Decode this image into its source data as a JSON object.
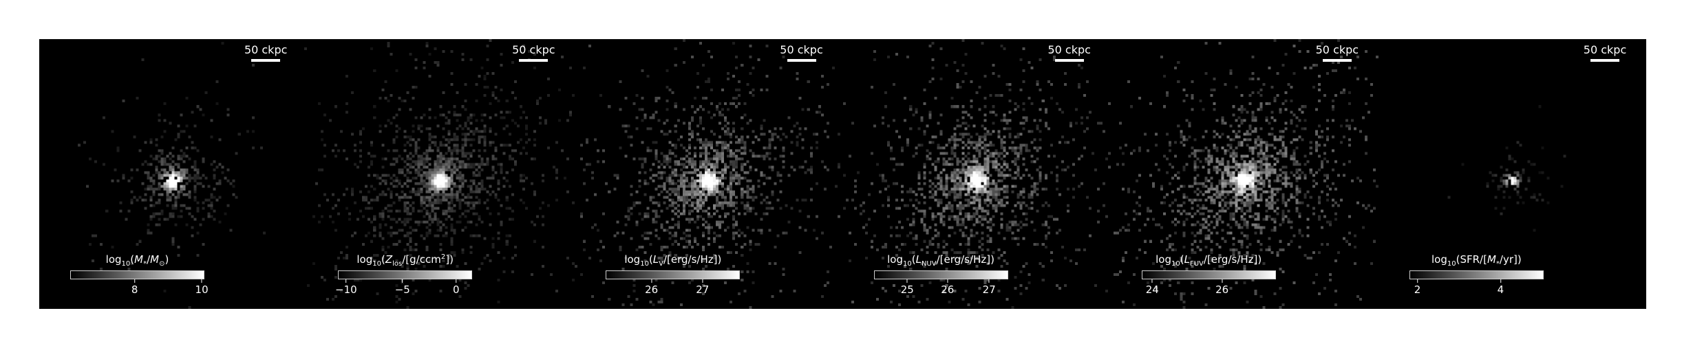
{
  "panels": [
    {
      "id": "stellar-mass",
      "scalebar": "50 ckpc",
      "label_html": "log<sub>10</sub>(<i>M</i><sub>*</sub>/<i>M</i><sub>⊙</sub>)",
      "ticks": [
        {
          "v": "8",
          "frac": 0.48
        },
        {
          "v": "10",
          "frac": 0.98
        }
      ],
      "spread": 0.55,
      "brightness": 0.55,
      "core": 1.0
    },
    {
      "id": "metallicity",
      "scalebar": "50 ckpc",
      "label_html": "log<sub>10</sub>(<i>Z</i><sub>los</sub>/[g/ccm<sup>2</sup>])",
      "ticks": [
        {
          "v": "−10",
          "frac": 0.06
        },
        {
          "v": "−5",
          "frac": 0.48
        },
        {
          "v": "0",
          "frac": 0.88
        }
      ],
      "spread": 1.0,
      "brightness": 0.5,
      "core": 1.0
    },
    {
      "id": "v-luminosity",
      "scalebar": "50 ckpc",
      "label_html": "log<sub>10</sub>(<i>L</i><sub>V</sub>/[erg/s/Hz])",
      "ticks": [
        {
          "v": "26",
          "frac": 0.34
        },
        {
          "v": "27",
          "frac": 0.72
        }
      ],
      "spread": 1.0,
      "brightness": 0.75,
      "core": 0.95
    },
    {
      "id": "nuv-luminosity",
      "scalebar": "50 ckpc",
      "label_html": "log<sub>10</sub>(<i>L</i><sub>NUV</sub>/[erg/s/Hz])",
      "ticks": [
        {
          "v": "25",
          "frac": 0.25
        },
        {
          "v": "26",
          "frac": 0.55
        },
        {
          "v": "27",
          "frac": 0.86
        }
      ],
      "spread": 1.0,
      "brightness": 0.8,
      "core": 0.9
    },
    {
      "id": "fuv-luminosity",
      "scalebar": "50 ckpc",
      "label_html": "log<sub>10</sub>(<i>L</i><sub>FUV</sub>/[erg/s/Hz])",
      "ticks": [
        {
          "v": "24",
          "frac": 0.08
        },
        {
          "v": "26",
          "frac": 0.6
        }
      ],
      "spread": 1.05,
      "brightness": 0.85,
      "core": 0.9
    },
    {
      "id": "sfr",
      "scalebar": "50 ckpc",
      "label_html": "log<sub>10</sub>(SFR/[<i>M</i><sub>*</sub>/yr])",
      "ticks": [
        {
          "v": "2",
          "frac": 0.06
        },
        {
          "v": "4",
          "frac": 0.68
        }
      ],
      "spread": 0.15,
      "brightness": 0.4,
      "core": 1.0
    }
  ]
}
